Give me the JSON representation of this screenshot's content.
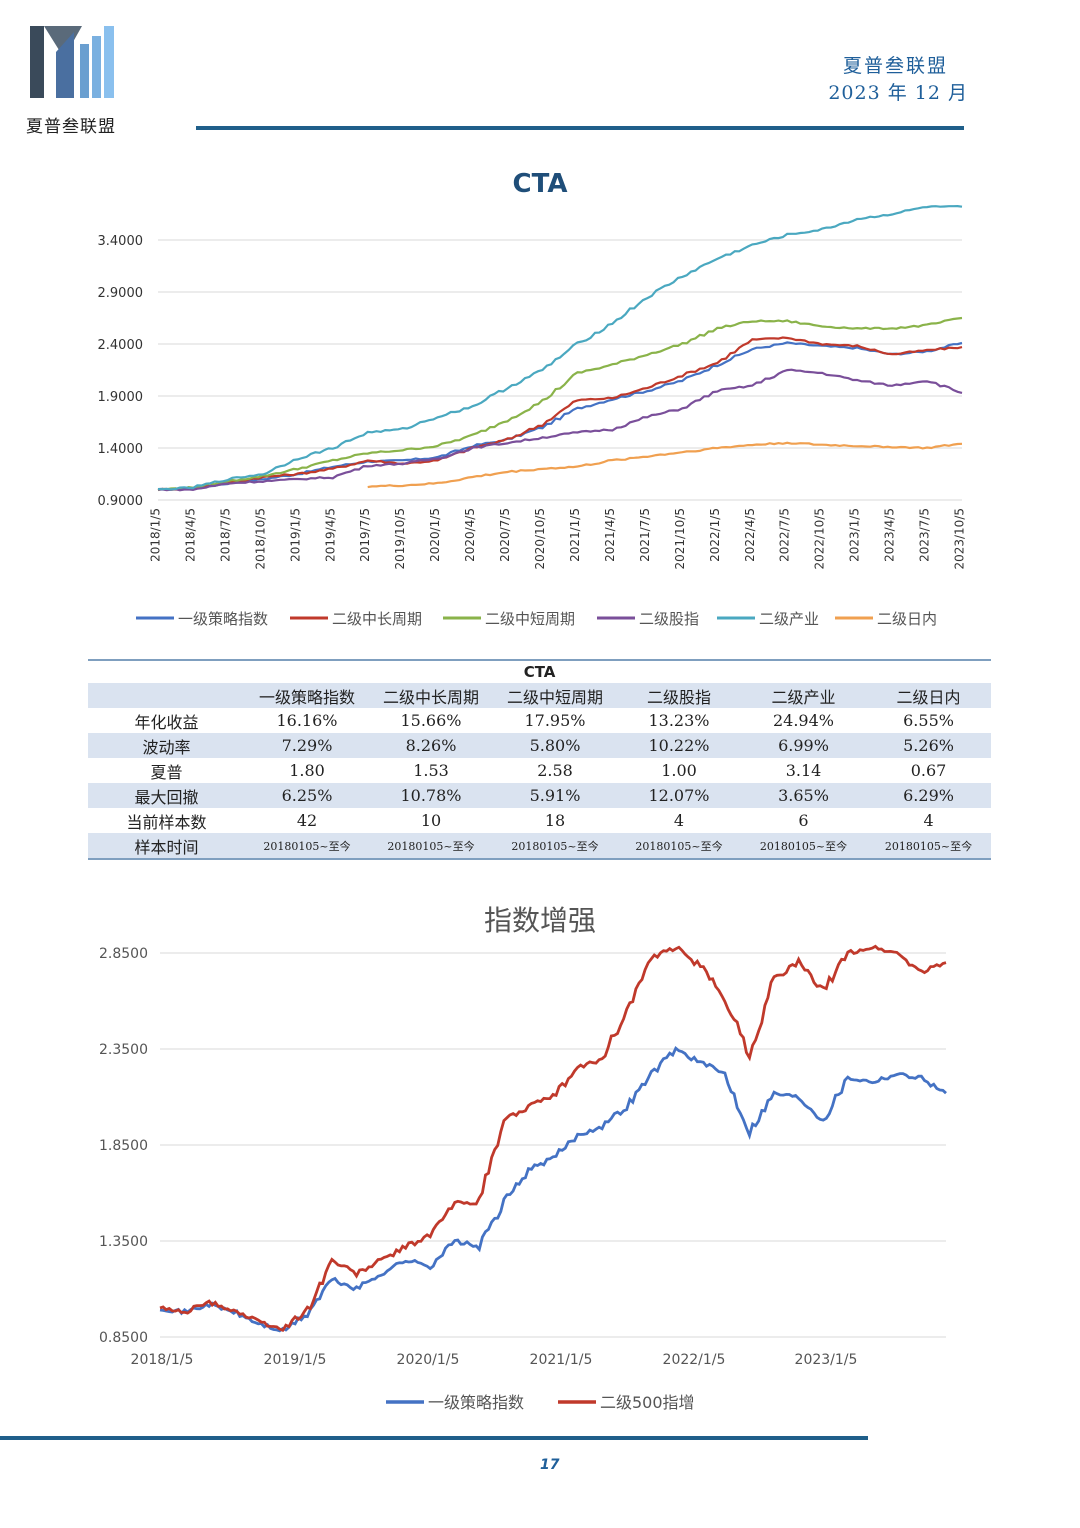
{
  "header": {
    "logo_text": "夏普叁联盟",
    "org": "夏普叁联盟",
    "date": "2023 年 12 月"
  },
  "colors": {
    "accent": "#1f5f8a",
    "series": [
      "#4472c4",
      "#c0392b",
      "#8ab34a",
      "#7a4f9a",
      "#4aa8c0",
      "#f0a050"
    ]
  },
  "chart_data": [
    {
      "type": "line",
      "title": "CTA",
      "xlabel": "",
      "ylabel": "",
      "ylim": [
        0.9,
        3.9
      ],
      "yticks": [
        "0.9000",
        "1.4000",
        "1.9000",
        "2.4000",
        "2.9000",
        "3.4000"
      ],
      "x_ticks": [
        "2018/1/5",
        "2018/4/5",
        "2018/7/5",
        "2018/10/5",
        "2019/1/5",
        "2019/4/5",
        "2019/7/5",
        "2019/10/5",
        "2020/1/5",
        "2020/4/5",
        "2020/7/5",
        "2020/10/5",
        "2021/1/5",
        "2021/4/5",
        "2021/7/5",
        "2021/10/5",
        "2022/1/5",
        "2022/4/5",
        "2022/7/5",
        "2022/10/5",
        "2023/1/5",
        "2023/4/5",
        "2023/7/5",
        "2023/10/5"
      ],
      "legend": "bottom",
      "series": [
        {
          "name": "一级策略指数",
          "values": [
            1.0,
            1.01,
            1.06,
            1.1,
            1.15,
            1.22,
            1.27,
            1.28,
            1.31,
            1.42,
            1.48,
            1.6,
            1.78,
            1.87,
            1.95,
            2.05,
            2.2,
            2.35,
            2.41,
            2.38,
            2.36,
            2.3,
            2.33,
            2.41
          ]
        },
        {
          "name": "二级中长周期",
          "values": [
            1.0,
            1.01,
            1.07,
            1.12,
            1.15,
            1.2,
            1.28,
            1.25,
            1.28,
            1.4,
            1.48,
            1.63,
            1.86,
            1.88,
            1.98,
            2.1,
            2.22,
            2.44,
            2.46,
            2.4,
            2.38,
            2.3,
            2.34,
            2.37
          ]
        },
        {
          "name": "二级中短周期",
          "values": [
            1.0,
            1.02,
            1.08,
            1.13,
            1.2,
            1.28,
            1.35,
            1.38,
            1.42,
            1.52,
            1.67,
            1.85,
            2.12,
            2.2,
            2.3,
            2.4,
            2.55,
            2.62,
            2.62,
            2.57,
            2.55,
            2.55,
            2.58,
            2.65
          ]
        },
        {
          "name": "二级股指",
          "values": [
            1.0,
            1.0,
            1.06,
            1.08,
            1.1,
            1.12,
            1.23,
            1.25,
            1.3,
            1.4,
            1.45,
            1.5,
            1.55,
            1.58,
            1.7,
            1.78,
            1.95,
            2.0,
            2.15,
            2.12,
            2.05,
            2.0,
            2.05,
            1.93
          ]
        },
        {
          "name": "二级产业",
          "values": [
            1.0,
            1.02,
            1.1,
            1.15,
            1.3,
            1.4,
            1.55,
            1.58,
            1.7,
            1.8,
            1.98,
            2.15,
            2.4,
            2.6,
            2.85,
            3.05,
            3.22,
            3.35,
            3.45,
            3.5,
            3.6,
            3.65,
            3.72,
            3.72
          ]
        },
        {
          "name": "二级日内",
          "values": [
            null,
            null,
            null,
            null,
            null,
            null,
            1.03,
            1.04,
            1.06,
            1.12,
            1.17,
            1.2,
            1.22,
            1.28,
            1.32,
            1.36,
            1.4,
            1.43,
            1.45,
            1.43,
            1.42,
            1.41,
            1.4,
            1.44
          ]
        }
      ]
    },
    {
      "type": "line",
      "title": "指数增强",
      "xlabel": "",
      "ylabel": "",
      "ylim": [
        0.85,
        2.85
      ],
      "yticks": [
        "0.8500",
        "1.3500",
        "1.8500",
        "2.3500",
        "2.8500"
      ],
      "x_ticks": [
        "2018/1/5",
        "2019/1/5",
        "2020/1/5",
        "2021/1/5",
        "2022/1/5",
        "2023/1/5"
      ],
      "legend": "bottom",
      "series": [
        {
          "name": "一级策略指数",
          "values": [
            1.0,
            0.98,
            1.02,
            0.98,
            0.92,
            0.88,
            0.97,
            1.15,
            1.1,
            1.18,
            1.25,
            1.22,
            1.35,
            1.32,
            1.55,
            1.72,
            1.78,
            1.9,
            1.95,
            2.05,
            2.22,
            2.35,
            2.28,
            2.22,
            1.92,
            2.12,
            2.1,
            1.98,
            2.2,
            2.18,
            2.22,
            2.2,
            2.12
          ]
        },
        {
          "name": "二级500指增",
          "values": [
            1.0,
            0.98,
            1.03,
            0.99,
            0.93,
            0.89,
            0.99,
            1.25,
            1.18,
            1.25,
            1.32,
            1.38,
            1.55,
            1.55,
            1.98,
            2.05,
            2.1,
            2.25,
            2.3,
            2.55,
            2.82,
            2.88,
            2.78,
            2.62,
            2.32,
            2.72,
            2.8,
            2.65,
            2.85,
            2.88,
            2.85,
            2.75,
            2.8
          ]
        }
      ]
    }
  ],
  "table": {
    "title": "CTA",
    "columns": [
      "",
      "一级策略指数",
      "二级中长周期",
      "二级中短周期",
      "二级股指",
      "二级产业",
      "二级日内"
    ],
    "rows": [
      [
        "年化收益",
        "16.16%",
        "15.66%",
        "17.95%",
        "13.23%",
        "24.94%",
        "6.55%"
      ],
      [
        "波动率",
        "7.29%",
        "8.26%",
        "5.80%",
        "10.22%",
        "6.99%",
        "5.26%"
      ],
      [
        "夏普",
        "1.80",
        "1.53",
        "2.58",
        "1.00",
        "3.14",
        "0.67"
      ],
      [
        "最大回撤",
        "6.25%",
        "10.78%",
        "5.91%",
        "12.07%",
        "3.65%",
        "6.29%"
      ],
      [
        "当前样本数",
        "42",
        "10",
        "18",
        "4",
        "6",
        "4"
      ],
      [
        "样本时间",
        "20180105~至今",
        "20180105~至今",
        "20180105~至今",
        "20180105~至今",
        "20180105~至今",
        "20180105~至今"
      ]
    ]
  },
  "footer": {
    "page": "17"
  }
}
